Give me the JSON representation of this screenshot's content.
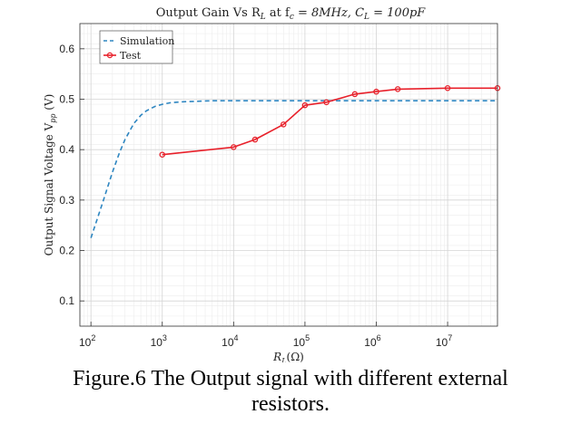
{
  "chart_data": {
    "type": "line",
    "title": "Output Gain Vs R",
    "title_sub_r": "L",
    "title_mid": " at f",
    "title_sub_f": "c",
    "title_eq1": " = 8MHz, C",
    "title_sub_c": "L",
    "title_eq2": " = 100pF",
    "xlabel_main": "R",
    "xlabel_sub": "L",
    "xlabel_unit": "(Ω)",
    "ylabel_main": "Output Signal Voltage V",
    "ylabel_sub": "pp",
    "ylabel_unit": " (V)",
    "x_scale": "log",
    "xlim": [
      70,
      50000000
    ],
    "ylim": [
      0.05,
      0.65
    ],
    "x_ticks": [
      {
        "value": 100,
        "base": "10",
        "exp": "2"
      },
      {
        "value": 1000,
        "base": "10",
        "exp": "3"
      },
      {
        "value": 10000,
        "base": "10",
        "exp": "4"
      },
      {
        "value": 100000,
        "base": "10",
        "exp": "5"
      },
      {
        "value": 1000000,
        "base": "10",
        "exp": "6"
      },
      {
        "value": 10000000,
        "base": "10",
        "exp": "7"
      }
    ],
    "y_ticks": [
      {
        "value": 0.1,
        "label": "0.1"
      },
      {
        "value": 0.2,
        "label": "0.2"
      },
      {
        "value": 0.3,
        "label": "0.3"
      },
      {
        "value": 0.4,
        "label": "0.4"
      },
      {
        "value": 0.5,
        "label": "0.5"
      },
      {
        "value": 0.6,
        "label": "0.6"
      }
    ],
    "grid": true,
    "legend_position": "top-left",
    "series": [
      {
        "name": "Simulation",
        "style": "dashed",
        "color": "#2e86c1",
        "x": [
          100,
          150,
          200,
          250,
          300,
          400,
          500,
          600,
          700,
          800,
          1000,
          1300,
          2000,
          5000,
          100000,
          50000000
        ],
        "y": [
          0.225,
          0.3,
          0.355,
          0.393,
          0.42,
          0.452,
          0.468,
          0.477,
          0.482,
          0.486,
          0.49,
          0.493,
          0.495,
          0.497,
          0.497,
          0.497
        ]
      },
      {
        "name": "Test",
        "style": "solid-markers",
        "color": "#e8202a",
        "x": [
          1000,
          10000,
          20000,
          50000,
          100000,
          200000,
          500000,
          1000000,
          2000000,
          10000000,
          50000000
        ],
        "y": [
          0.39,
          0.405,
          0.42,
          0.45,
          0.488,
          0.494,
          0.51,
          0.515,
          0.52,
          0.522,
          0.522
        ]
      }
    ]
  },
  "caption": {
    "line1": "Figure.6 The Output signal with different external",
    "line2": "resistors."
  }
}
